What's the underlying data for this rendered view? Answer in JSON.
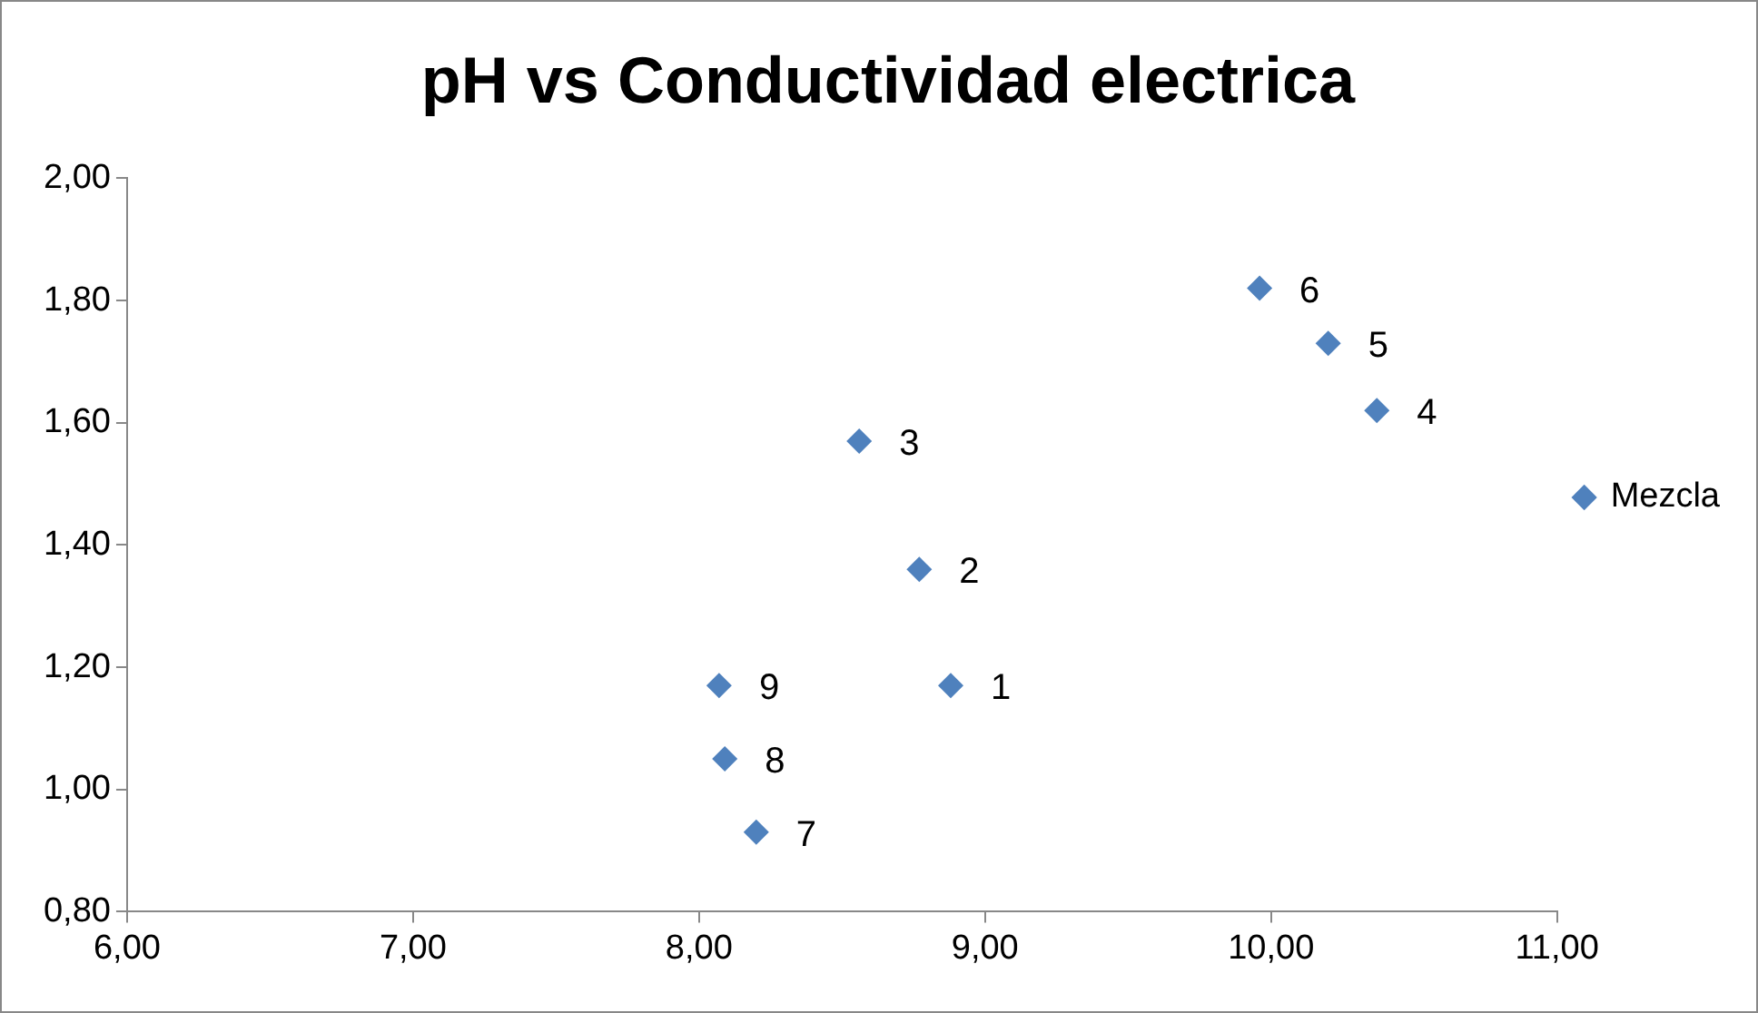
{
  "chart_data": {
    "type": "scatter",
    "title": "pH vs Conductividad electrica",
    "x": [
      8.88,
      8.77,
      8.56,
      10.37,
      10.2,
      9.96,
      8.2,
      8.09,
      8.07
    ],
    "series": [
      {
        "name": "Mezcla",
        "color": "#4f81bd",
        "values": [
          1.17,
          1.36,
          1.57,
          1.62,
          1.73,
          1.82,
          0.93,
          1.05,
          1.17
        ]
      }
    ],
    "xlim": [
      6,
      11
    ],
    "xticks": [
      {
        "value": 6,
        "label": "6,00"
      },
      {
        "value": 7,
        "label": "7,00"
      },
      {
        "value": 8,
        "label": "8,00"
      },
      {
        "value": 9,
        "label": "9,00"
      },
      {
        "value": 10,
        "label": "10,00"
      },
      {
        "value": 11,
        "label": "11,00"
      }
    ],
    "ylim": [
      0.8,
      2
    ],
    "yticks": [
      {
        "value": 0.8,
        "label": "0,80"
      },
      {
        "value": 1,
        "label": "1,00"
      },
      {
        "value": 1.2,
        "label": "1,20"
      },
      {
        "value": 1.4,
        "label": "1,40"
      },
      {
        "value": 1.6,
        "label": "1,60"
      },
      {
        "value": 1.8,
        "label": "1,80"
      },
      {
        "value": 2,
        "label": "2,00"
      }
    ],
    "annotations": [
      {
        "text": "1",
        "x": 8.88,
        "y": 1.17
      },
      {
        "text": "2",
        "x": 8.77,
        "y": 1.36
      },
      {
        "text": "3",
        "x": 8.56,
        "y": 1.57
      },
      {
        "text": "4",
        "x": 10.37,
        "y": 1.62
      },
      {
        "text": "5",
        "x": 10.2,
        "y": 1.73
      },
      {
        "text": "6",
        "x": 9.96,
        "y": 1.82
      },
      {
        "text": "7",
        "x": 8.2,
        "y": 0.93
      },
      {
        "text": "8",
        "x": 8.09,
        "y": 1.05
      },
      {
        "text": "9",
        "x": 8.07,
        "y": 1.17
      }
    ],
    "grid": false,
    "legend": "right",
    "marker": "diamond"
  }
}
